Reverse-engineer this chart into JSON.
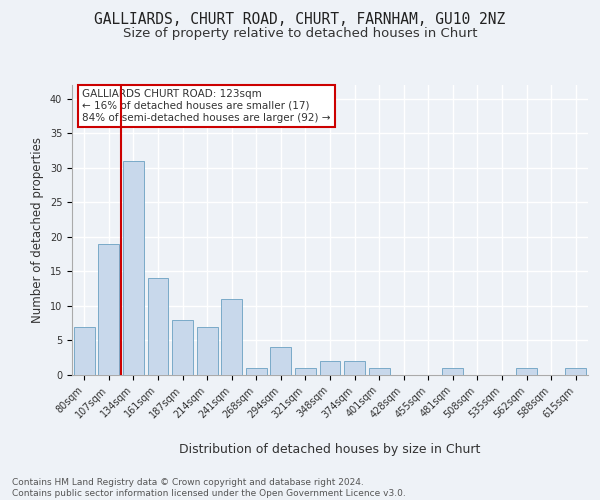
{
  "title1": "GALLIARDS, CHURT ROAD, CHURT, FARNHAM, GU10 2NZ",
  "title2": "Size of property relative to detached houses in Churt",
  "xlabel": "Distribution of detached houses by size in Churt",
  "ylabel": "Number of detached properties",
  "categories": [
    "80sqm",
    "107sqm",
    "134sqm",
    "161sqm",
    "187sqm",
    "214sqm",
    "241sqm",
    "268sqm",
    "294sqm",
    "321sqm",
    "348sqm",
    "374sqm",
    "401sqm",
    "428sqm",
    "455sqm",
    "481sqm",
    "508sqm",
    "535sqm",
    "562sqm",
    "588sqm",
    "615sqm"
  ],
  "values": [
    7,
    19,
    31,
    14,
    8,
    7,
    11,
    1,
    4,
    1,
    2,
    2,
    1,
    0,
    0,
    1,
    0,
    0,
    1,
    0,
    1
  ],
  "bar_color": "#c8d8eb",
  "bar_edge_color": "#7aaac8",
  "vline_color": "#cc0000",
  "annotation_title": "GALLIARDS CHURT ROAD: 123sqm",
  "annotation_line2": "← 16% of detached houses are smaller (17)",
  "annotation_line3": "84% of semi-detached houses are larger (92) →",
  "annotation_box_color": "#ffffff",
  "annotation_box_edgecolor": "#cc0000",
  "ylim": [
    0,
    42
  ],
  "yticks": [
    0,
    5,
    10,
    15,
    20,
    25,
    30,
    35,
    40
  ],
  "footnote": "Contains HM Land Registry data © Crown copyright and database right 2024.\nContains public sector information licensed under the Open Government Licence v3.0.",
  "bg_color": "#eef2f7",
  "plot_bg_color": "#eef2f7",
  "grid_color": "#ffffff",
  "title1_fontsize": 10.5,
  "title2_fontsize": 9.5,
  "xlabel_fontsize": 9,
  "ylabel_fontsize": 8.5,
  "tick_fontsize": 7,
  "annotation_fontsize": 7.5,
  "footnote_fontsize": 6.5
}
